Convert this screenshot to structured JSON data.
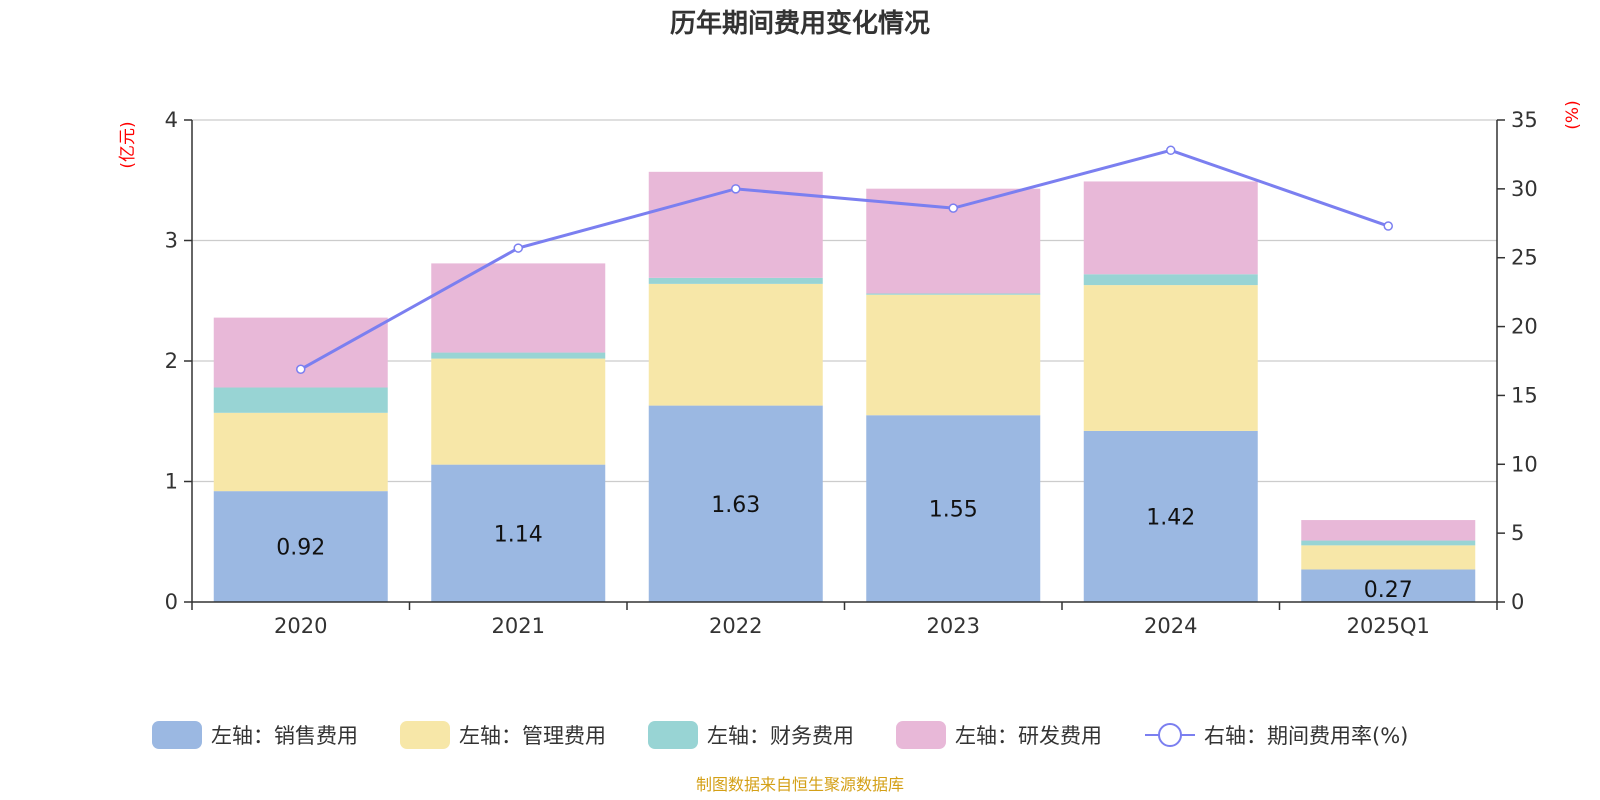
{
  "chart_data": {
    "type": "bar",
    "stacked": true,
    "title": "历年期间费用变化情况",
    "categories": [
      "2020",
      "2021",
      "2022",
      "2023",
      "2024",
      "2025Q1"
    ],
    "series": [
      {
        "name": "左轴：销售费用",
        "axis": "left",
        "color": "#9bb8e2",
        "values": [
          0.92,
          1.14,
          1.63,
          1.55,
          1.42,
          0.27
        ],
        "show_labels": true
      },
      {
        "name": "左轴：管理费用",
        "axis": "left",
        "color": "#f7e7a8",
        "values": [
          0.65,
          0.88,
          1.01,
          1.0,
          1.21,
          0.2
        ],
        "show_labels": false
      },
      {
        "name": "左轴：财务费用",
        "axis": "left",
        "color": "#98d4d4",
        "values": [
          0.21,
          0.05,
          0.05,
          0.01,
          0.09,
          0.04
        ],
        "show_labels": false
      },
      {
        "name": "左轴：研发费用",
        "axis": "left",
        "color": "#e8b8d8",
        "values": [
          0.58,
          0.74,
          0.88,
          0.87,
          0.77,
          0.17
        ],
        "show_labels": false
      }
    ],
    "line_series": {
      "name": "右轴：期间费用率(%)",
      "axis": "right",
      "color": "#7b7ff0",
      "values": [
        16.9,
        25.7,
        30.0,
        28.6,
        32.8,
        27.3
      ]
    },
    "left_axis": {
      "unit": "(亿元)",
      "ylim": [
        0,
        4
      ],
      "ticks": [
        "0",
        "1",
        "2",
        "3",
        "4"
      ]
    },
    "right_axis": {
      "unit": "(%)",
      "ylim": [
        0,
        35
      ],
      "ticks": [
        "0",
        "5",
        "10",
        "15",
        "20",
        "25",
        "30",
        "35"
      ]
    },
    "legend_position": "bottom",
    "grid": true
  },
  "source_text": "制图数据来自恒生聚源数据库"
}
